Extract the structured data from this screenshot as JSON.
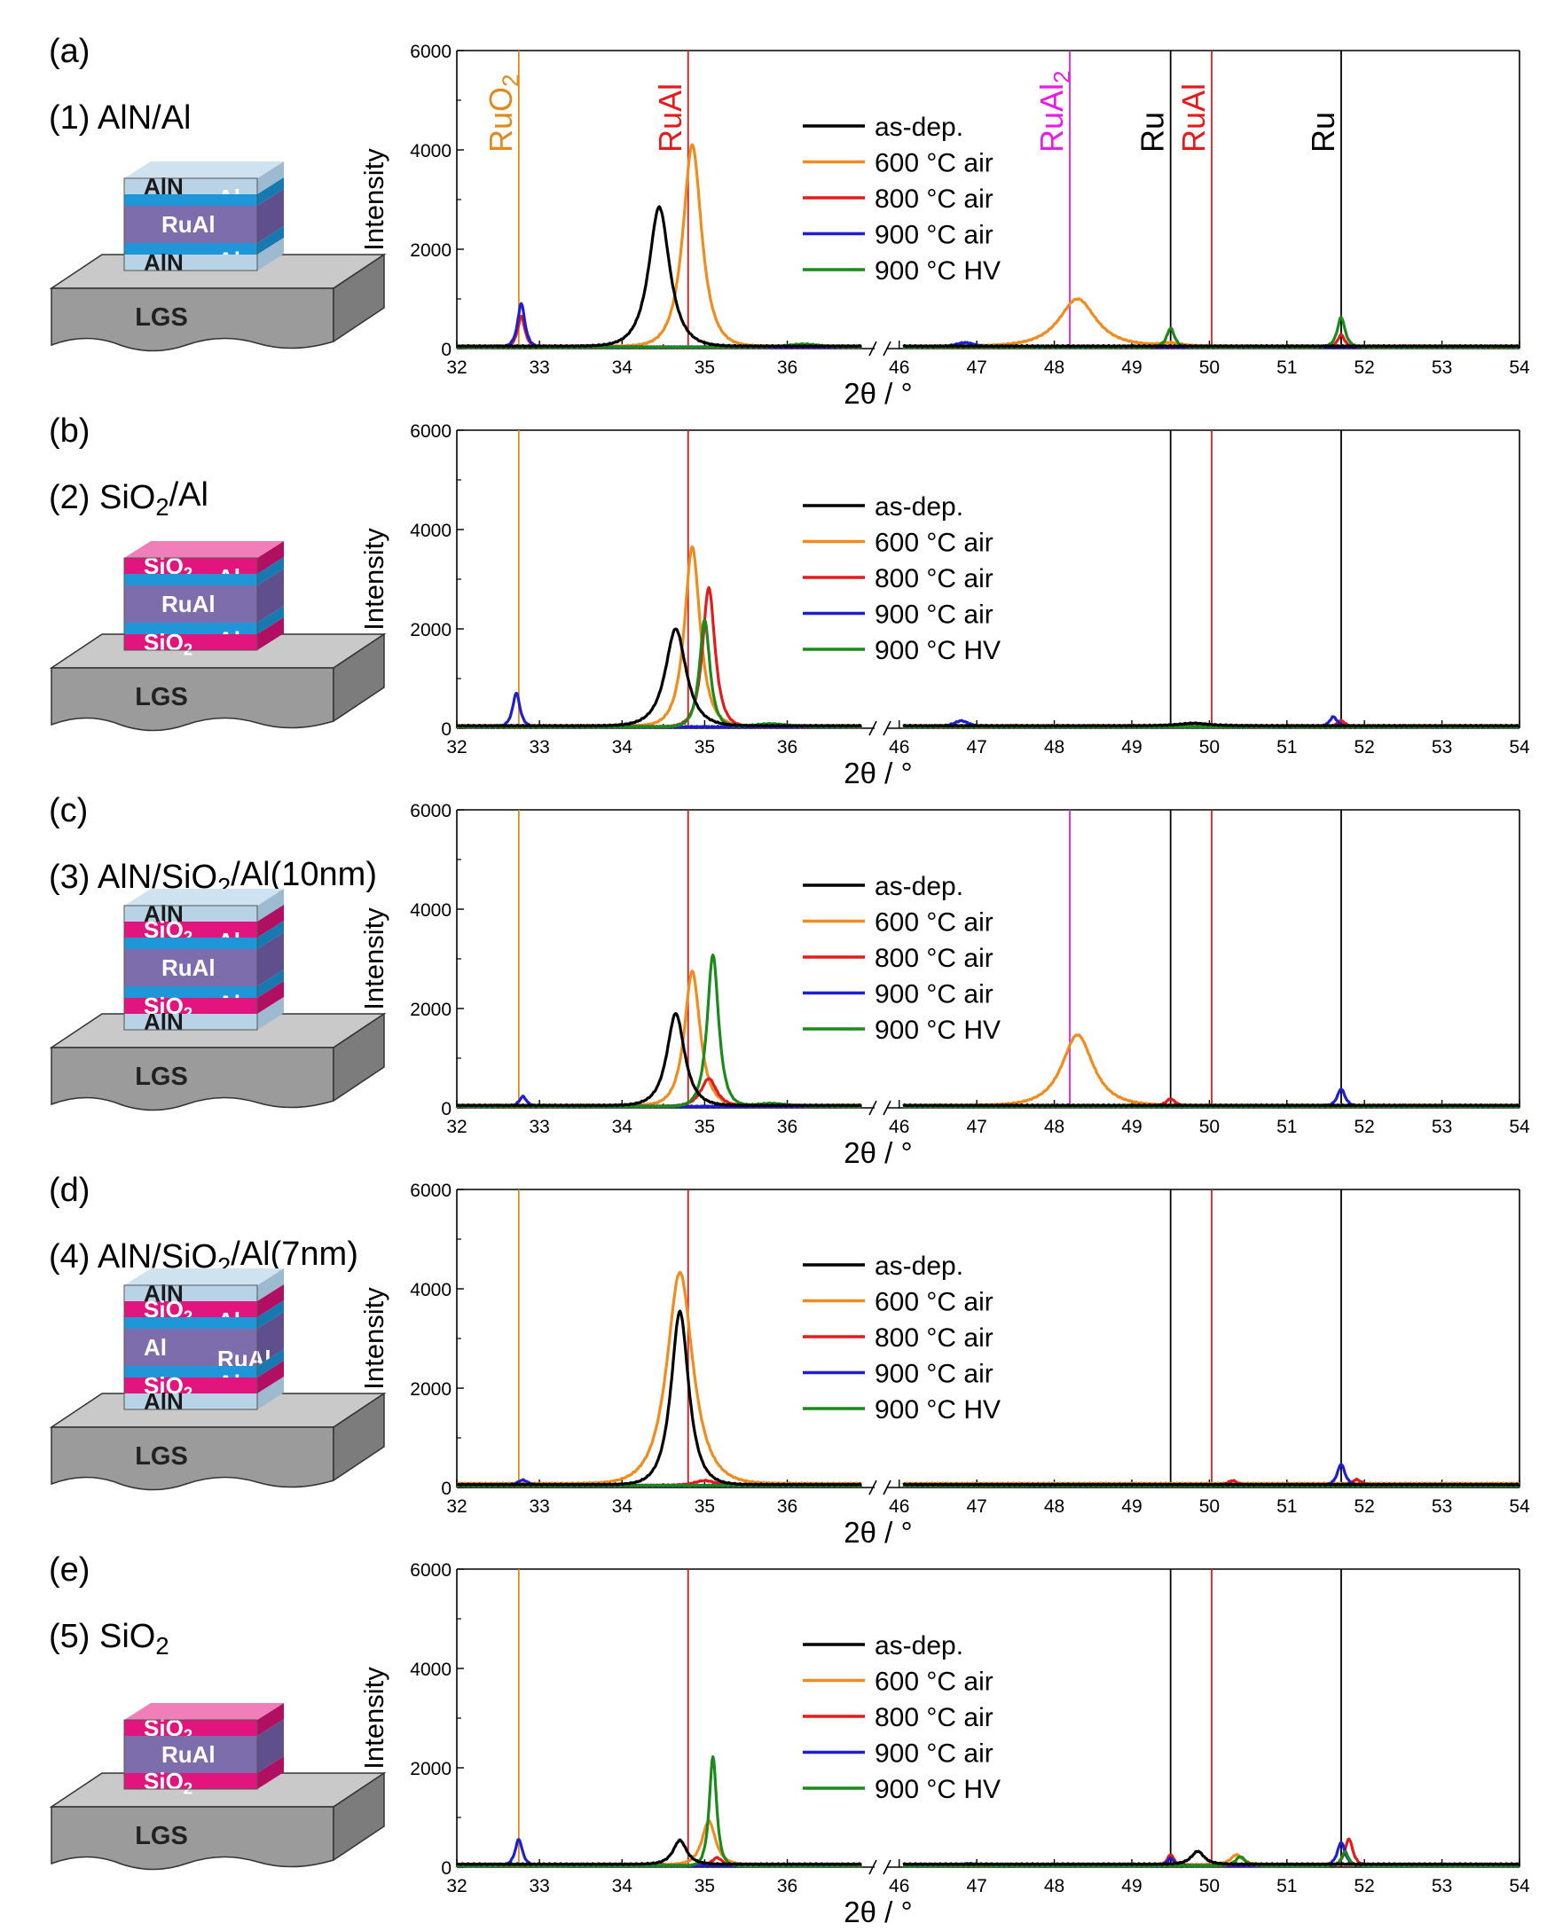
{
  "figure": {
    "x_tick_labels_left": [
      "32",
      "33",
      "34",
      "35",
      "36"
    ],
    "x_tick_labels_right": [
      "46",
      "47",
      "48",
      "49",
      "50",
      "51",
      "52",
      "53",
      "54"
    ],
    "y_tick_labels": [
      "0",
      "2000",
      "4000",
      "6000"
    ]
  },
  "legend": [
    {
      "label": "as-dep.",
      "color": "#000000"
    },
    {
      "label": "600 °C air",
      "color": "#f08c1e"
    },
    {
      "label": "800 °C air",
      "color": "#e41a1c"
    },
    {
      "label": "900 °C air",
      "color": "#1f1fd0"
    },
    {
      "label": "900 °C HV",
      "color": "#1a8a1a"
    }
  ],
  "reference_lines": [
    {
      "name": "RuO2",
      "position": 32.75,
      "color": "#e08a1e"
    },
    {
      "name": "RuAl",
      "position": 34.8,
      "color": "#e41a1c"
    },
    {
      "name": "RuAl2",
      "position": 48.2,
      "color": "#e81ce8"
    },
    {
      "name": "Ru",
      "position": 49.5,
      "color": "#000000"
    },
    {
      "name": "RuAl",
      "position": 50.03,
      "color": "#e41a1c"
    },
    {
      "name": "Ru",
      "position": 51.7,
      "color": "#000000"
    }
  ],
  "reference_labels": {
    "ruo2": [
      "RuO",
      "2"
    ],
    "rual": "RuAl",
    "rual2": [
      "RuAl",
      "2"
    ],
    "ru": "Ru"
  },
  "panels": [
    {
      "letter": "(a)",
      "title": "(1) AlN/Al",
      "title_parts": [
        "(1) AlN/Al"
      ],
      "stack": [
        {
          "material": "AlN",
          "label": "AlN",
          "side_label": "Al"
        },
        {
          "material": "Al",
          "label": "",
          "side_label": ""
        },
        {
          "material": "RuAl",
          "label": "RuAl",
          "side_label": ""
        },
        {
          "material": "Al",
          "label": "",
          "side_label": "Al"
        },
        {
          "material": "AlN",
          "label": "AlN",
          "side_label": ""
        }
      ],
      "substrate": "LGS",
      "ylabel": "Intensity",
      "xlabel": "2θ / °",
      "show_lines": [
        "RuO2",
        "RuAl",
        "RuAl2",
        "Ru",
        "RuAl",
        "Ru"
      ],
      "show_labels": true
    },
    {
      "letter": "(b)",
      "title": "(2) SiO2/Al",
      "title_parts": [
        "(2) SiO",
        "2",
        "/Al"
      ],
      "stack": [
        {
          "material": "SiO2",
          "label": "SiO2",
          "side_label": "Al"
        },
        {
          "material": "Al",
          "label": "",
          "side_label": ""
        },
        {
          "material": "RuAl",
          "label": "RuAl",
          "side_label": ""
        },
        {
          "material": "Al",
          "label": "",
          "side_label": "Al"
        },
        {
          "material": "SiO2",
          "label": "SiO2",
          "side_label": ""
        }
      ],
      "substrate": "LGS",
      "ylabel": "Intensity",
      "xlabel": "2θ / °",
      "show_lines": [
        "RuO2",
        "RuAl",
        "Ru",
        "RuAl",
        "Ru"
      ],
      "show_labels": false
    },
    {
      "letter": "(c)",
      "title": "(3) AlN/SiO2/Al(10nm)",
      "title_parts": [
        "(3) AlN/SiO",
        "2",
        "/Al(10nm)"
      ],
      "stack": [
        {
          "material": "AlN",
          "label": "AlN",
          "side_label": ""
        },
        {
          "material": "SiO2",
          "label": "SiO2",
          "side_label": "Al"
        },
        {
          "material": "Al",
          "label": "",
          "side_label": ""
        },
        {
          "material": "RuAl",
          "label": "RuAl",
          "side_label": ""
        },
        {
          "material": "Al",
          "label": "",
          "side_label": "Al"
        },
        {
          "material": "SiO2",
          "label": "SiO2",
          "side_label": ""
        },
        {
          "material": "AlN",
          "label": "AlN",
          "side_label": ""
        }
      ],
      "substrate": "LGS",
      "ylabel": "Intensity",
      "xlabel": "2θ / °",
      "show_lines": [
        "RuO2",
        "RuAl",
        "RuAl2",
        "Ru",
        "RuAl",
        "Ru"
      ],
      "show_labels": false
    },
    {
      "letter": "(d)",
      "title": "(4) AlN/SiO2/Al(7nm)",
      "title_parts": [
        "(4) AlN/SiO",
        "2",
        "/Al(7nm)"
      ],
      "stack": [
        {
          "material": "AlN",
          "label": "AlN",
          "side_label": ""
        },
        {
          "material": "SiO2",
          "label": "SiO2",
          "side_label": "Al"
        },
        {
          "material": "Al",
          "label": "",
          "side_label": ""
        },
        {
          "material": "RuAl",
          "label": "Al",
          "side_label": "RuAl"
        },
        {
          "material": "Al",
          "label": "",
          "side_label": "Al"
        },
        {
          "material": "SiO2",
          "label": "SiO2",
          "side_label": ""
        },
        {
          "material": "AlN",
          "label": "AlN",
          "side_label": ""
        }
      ],
      "substrate": "LGS",
      "ylabel": "Intensity",
      "xlabel": "2θ / °",
      "show_lines": [
        "RuO2",
        "RuAl",
        "Ru",
        "RuAl",
        "Ru"
      ],
      "show_labels": false
    },
    {
      "letter": "(e)",
      "title": "(5) SiO2",
      "title_parts": [
        "(5) SiO",
        "2",
        ""
      ],
      "stack": [
        {
          "material": "SiO2",
          "label": "SiO2",
          "side_label": ""
        },
        {
          "material": "RuAl",
          "label": "RuAl",
          "side_label": ""
        },
        {
          "material": "SiO2",
          "label": "SiO2",
          "side_label": ""
        }
      ],
      "substrate": "LGS",
      "ylabel": "Intensity",
      "xlabel": "2θ / °",
      "show_lines": [
        "RuO2",
        "RuAl",
        "Ru",
        "RuAl",
        "Ru"
      ],
      "show_labels": false
    }
  ],
  "chart_data": [
    {
      "type": "line",
      "title": "(a) (1) AlN/Al",
      "xlabel": "2θ / °",
      "ylabel": "Intensity",
      "xlim_segments": [
        [
          32,
          37.1
        ],
        [
          45.9,
          54
        ]
      ],
      "ylim": [
        0,
        6000
      ],
      "yticks": [
        0,
        2000,
        4000,
        6000
      ],
      "series": [
        {
          "name": "as-dep.",
          "baseline": 50,
          "peaks": [
            [
              34.45,
              2800,
              0.2
            ]
          ]
        },
        {
          "name": "600 °C air",
          "baseline": 50,
          "peaks": [
            [
              34.85,
              4050,
              0.18
            ],
            [
              48.3,
              950,
              0.38
            ],
            [
              49.5,
              60,
              0.2
            ]
          ]
        },
        {
          "name": "800 °C air",
          "baseline": 30,
          "peaks": [
            [
              32.78,
              620,
              0.07
            ],
            [
              51.7,
              250,
              0.07
            ]
          ]
        },
        {
          "name": "900 °C air",
          "baseline": 30,
          "peaks": [
            [
              32.78,
              880,
              0.07
            ],
            [
              46.85,
              90,
              0.2
            ]
          ]
        },
        {
          "name": "900 °C HV",
          "baseline": 30,
          "peaks": [
            [
              49.5,
              380,
              0.08
            ],
            [
              51.7,
              600,
              0.08
            ],
            [
              36.2,
              60,
              0.3
            ]
          ]
        }
      ]
    },
    {
      "type": "line",
      "title": "(b) (2) SiO2/Al",
      "xlabel": "2θ / °",
      "ylabel": "Intensity",
      "xlim_segments": [
        [
          32,
          37.1
        ],
        [
          45.9,
          54
        ]
      ],
      "ylim": [
        0,
        6000
      ],
      "yticks": [
        0,
        2000,
        4000,
        6000
      ],
      "series": [
        {
          "name": "as-dep.",
          "baseline": 50,
          "peaks": [
            [
              34.65,
              1950,
              0.2
            ],
            [
              49.8,
              50,
              0.3
            ]
          ]
        },
        {
          "name": "600 °C air",
          "baseline": 50,
          "peaks": [
            [
              34.85,
              3600,
              0.15
            ]
          ]
        },
        {
          "name": "800 °C air",
          "baseline": 30,
          "peaks": [
            [
              35.05,
              2800,
              0.12
            ],
            [
              51.7,
              120,
              0.08
            ]
          ]
        },
        {
          "name": "900 °C air",
          "baseline": 30,
          "peaks": [
            [
              32.72,
              680,
              0.07
            ],
            [
              46.8,
              120,
              0.15
            ],
            [
              51.6,
              200,
              0.08
            ]
          ]
        },
        {
          "name": "900 °C HV",
          "baseline": 30,
          "peaks": [
            [
              35.0,
              2150,
              0.1
            ],
            [
              35.8,
              60,
              0.3
            ]
          ]
        }
      ]
    },
    {
      "type": "line",
      "title": "(c) (3) AlN/SiO2/Al(10nm)",
      "xlabel": "2θ / °",
      "ylabel": "Intensity",
      "xlim_segments": [
        [
          32,
          37.1
        ],
        [
          45.9,
          54
        ]
      ],
      "ylim": [
        0,
        6000
      ],
      "yticks": [
        0,
        2000,
        4000,
        6000
      ],
      "series": [
        {
          "name": "as-dep.",
          "baseline": 50,
          "peaks": [
            [
              34.65,
              1850,
              0.17
            ]
          ]
        },
        {
          "name": "600 °C air",
          "baseline": 50,
          "peaks": [
            [
              34.85,
              2700,
              0.15
            ],
            [
              48.3,
              1420,
              0.32
            ]
          ]
        },
        {
          "name": "800 °C air",
          "baseline": 30,
          "peaks": [
            [
              35.05,
              560,
              0.15
            ],
            [
              49.5,
              150,
              0.1
            ]
          ]
        },
        {
          "name": "900 °C air",
          "baseline": 30,
          "peaks": [
            [
              32.8,
              200,
              0.07
            ],
            [
              51.7,
              350,
              0.08
            ]
          ]
        },
        {
          "name": "900 °C HV",
          "baseline": 30,
          "peaks": [
            [
              35.1,
              3050,
              0.11
            ],
            [
              35.8,
              60,
              0.3
            ]
          ]
        }
      ]
    },
    {
      "type": "line",
      "title": "(d) (4) AlN/SiO2/Al(7nm)",
      "xlabel": "2θ / °",
      "ylabel": "Intensity",
      "xlim_segments": [
        [
          32,
          37.1
        ],
        [
          45.9,
          54
        ]
      ],
      "ylim": [
        0,
        6000
      ],
      "yticks": [
        0,
        2000,
        4000,
        6000
      ],
      "series": [
        {
          "name": "as-dep.",
          "baseline": 60,
          "peaks": [
            [
              34.7,
              3480,
              0.17
            ]
          ]
        },
        {
          "name": "600 °C air",
          "baseline": 80,
          "peaks": [
            [
              34.7,
              4250,
              0.25
            ]
          ]
        },
        {
          "name": "800 °C air",
          "baseline": 40,
          "peaks": [
            [
              35.0,
              100,
              0.2
            ],
            [
              50.3,
              100,
              0.1
            ],
            [
              51.9,
              120,
              0.1
            ]
          ]
        },
        {
          "name": "900 °C air",
          "baseline": 40,
          "peaks": [
            [
              32.8,
              110,
              0.1
            ],
            [
              51.7,
              430,
              0.08
            ]
          ]
        },
        {
          "name": "900 °C HV",
          "baseline": 40,
          "peaks": []
        }
      ]
    },
    {
      "type": "line",
      "title": "(e) (5) SiO2",
      "xlabel": "2θ / °",
      "ylabel": "Intensity",
      "xlim_segments": [
        [
          32,
          37.1
        ],
        [
          45.9,
          54
        ]
      ],
      "ylim": [
        0,
        6000
      ],
      "yticks": [
        0,
        2000,
        4000,
        6000
      ],
      "series": [
        {
          "name": "as-dep.",
          "baseline": 60,
          "peaks": [
            [
              34.7,
              480,
              0.13
            ],
            [
              49.85,
              260,
              0.13
            ]
          ]
        },
        {
          "name": "600 °C air",
          "baseline": 50,
          "peaks": [
            [
              35.05,
              880,
              0.13
            ],
            [
              50.35,
              200,
              0.12
            ]
          ]
        },
        {
          "name": "800 °C air",
          "baseline": 30,
          "peaks": [
            [
              35.15,
              160,
              0.1
            ],
            [
              49.5,
              220,
              0.07
            ],
            [
              51.8,
              540,
              0.08
            ]
          ]
        },
        {
          "name": "900 °C air",
          "baseline": 30,
          "peaks": [
            [
              32.75,
              530,
              0.07
            ],
            [
              46.9,
              40,
              0.2
            ],
            [
              49.5,
              150,
              0.07
            ],
            [
              51.7,
              470,
              0.08
            ]
          ]
        },
        {
          "name": "900 °C HV",
          "baseline": 30,
          "peaks": [
            [
              35.1,
              2200,
              0.07
            ],
            [
              50.4,
              180,
              0.1
            ],
            [
              51.75,
              280,
              0.07
            ]
          ]
        }
      ]
    }
  ]
}
